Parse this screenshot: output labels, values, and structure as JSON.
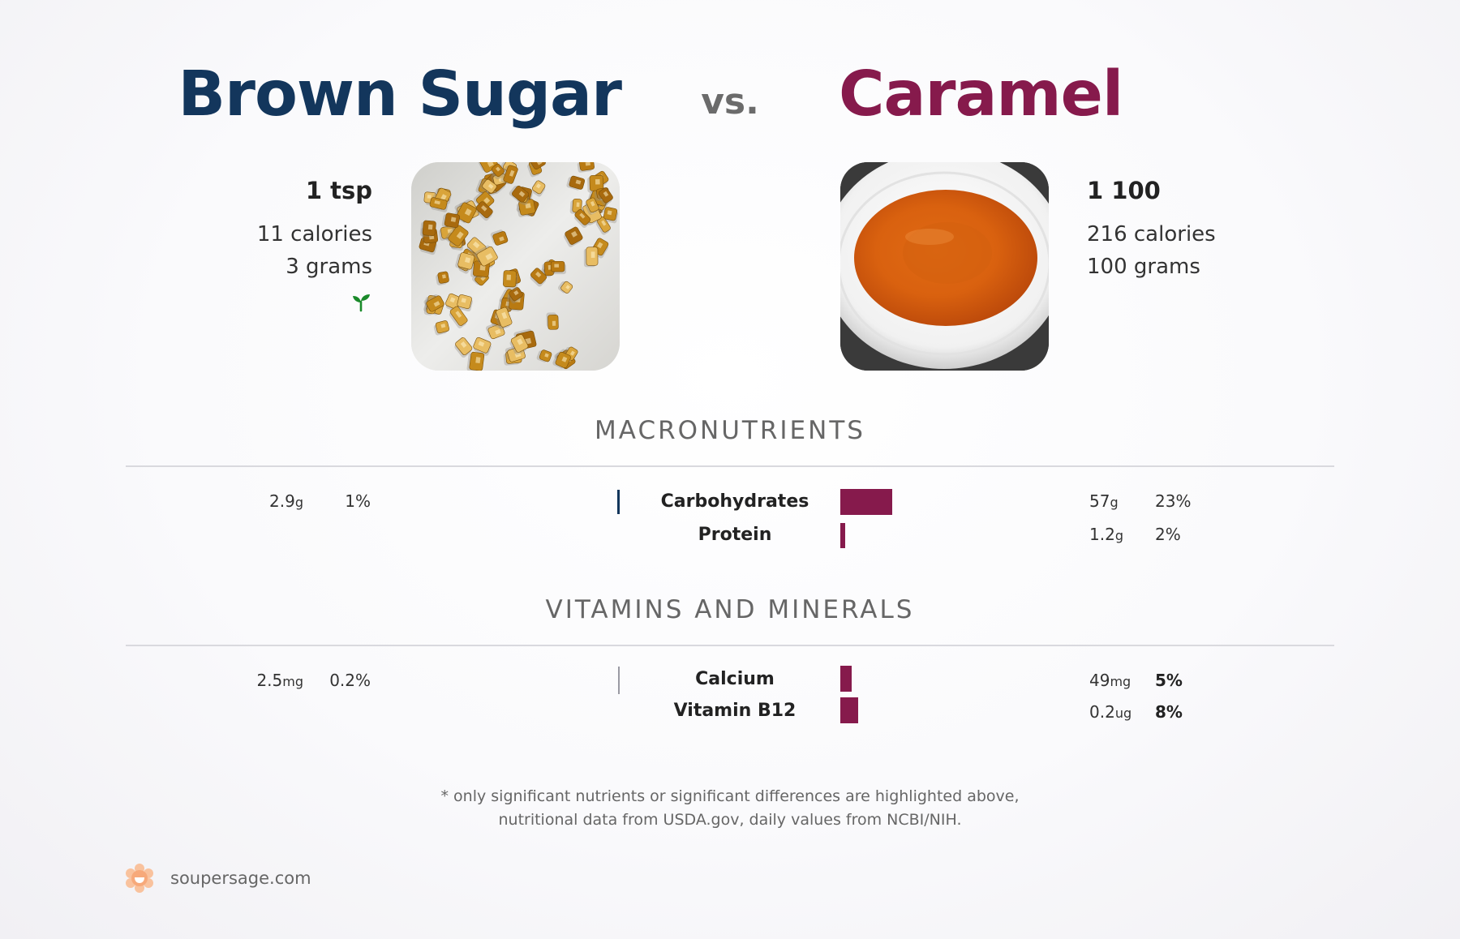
{
  "header": {
    "left_title": "Brown Sugar",
    "vs": "vs.",
    "right_title": "Caramel"
  },
  "left_food": {
    "portion": "1 tsp",
    "calories": "11 calories",
    "grams": "3 grams",
    "icon": "sprout-icon",
    "icon_color": "#1a8a2a",
    "title_color": "#13365c"
  },
  "right_food": {
    "portion": "1 100",
    "calories": "216 calories",
    "grams": "100 grams",
    "title_color": "#861a4c"
  },
  "sections": {
    "macronutrients": {
      "title": "MACRONUTRIENTS",
      "rows": [
        {
          "label": "Carbohydrates",
          "left": {
            "value": "2.9",
            "unit": "g",
            "percent": "1%",
            "fraction": 0.01
          },
          "right": {
            "value": "57",
            "unit": "g",
            "percent": "23%",
            "fraction": 0.23
          }
        },
        {
          "label": "Protein",
          "left": {
            "value": "",
            "unit": "",
            "percent": "",
            "fraction": 0
          },
          "right": {
            "value": "1.2",
            "unit": "g",
            "percent": "2%",
            "fraction": 0.02
          }
        }
      ]
    },
    "vitamins": {
      "title": "VITAMINS AND MINERALS",
      "rows": [
        {
          "label": "Calcium",
          "left": {
            "value": "2.5",
            "unit": "mg",
            "percent": "0.2%",
            "fraction": 0.002
          },
          "right": {
            "value": "49",
            "unit": "mg",
            "percent": "5%",
            "fraction": 0.05
          }
        },
        {
          "label": "Vitamin B12",
          "left": {
            "value": "",
            "unit": "",
            "percent": "",
            "fraction": 0
          },
          "right": {
            "value": "0.2",
            "unit": "ug",
            "percent": "8%",
            "fraction": 0.08
          }
        }
      ]
    }
  },
  "footnote": {
    "line1": "* only significant nutrients or significant differences are highlighted above,",
    "line2": "nutritional data from USDA.gov, daily values from NCBI/NIH."
  },
  "brand": {
    "name": "soupersage.com",
    "logo_color": "#f7a97a"
  },
  "colors": {
    "left_accent": "#13365c",
    "right_accent": "#861a4c"
  }
}
